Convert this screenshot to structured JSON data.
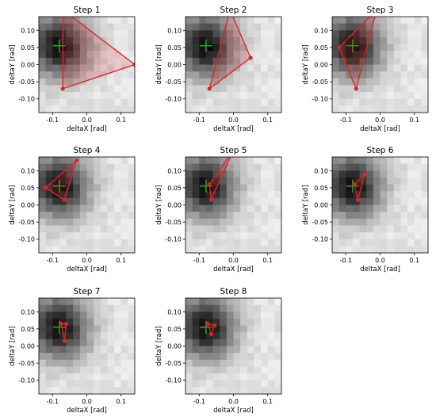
{
  "chart_data": {
    "type": "heatmap",
    "xlabel": "deltaX [rad]",
    "ylabel": "deltaY [rad]",
    "xlim": [
      -0.14,
      0.14
    ],
    "ylim": [
      -0.14,
      0.14
    ],
    "x_ticks": [
      "-0.1",
      "0.0",
      "0.1"
    ],
    "x_tick_values": [
      -0.1,
      0.0,
      0.1
    ],
    "y_ticks": [
      "0.10",
      "0.05",
      "0.00",
      "-0.05",
      "-0.10"
    ],
    "y_tick_values": [
      0.1,
      0.05,
      0.0,
      -0.05,
      -0.1
    ],
    "grid": false,
    "colormap": "gray",
    "target_marker": {
      "symbol": "plus",
      "color": "#2ca02c",
      "x": -0.08,
      "y": 0.055
    },
    "simplex_color": "#d62728",
    "panels": [
      {
        "title": "Step 1",
        "simplex": [
          [
            -0.07,
            0.16
          ],
          [
            0.14,
            0.0
          ],
          [
            -0.07,
            -0.07
          ]
        ]
      },
      {
        "title": "Step 2",
        "simplex": [
          [
            -0.01,
            0.16
          ],
          [
            0.05,
            0.02
          ],
          [
            -0.07,
            -0.07
          ]
        ]
      },
      {
        "title": "Step 3",
        "simplex": [
          [
            -0.01,
            0.16
          ],
          [
            -0.12,
            0.05
          ],
          [
            -0.07,
            -0.07
          ]
        ]
      },
      {
        "title": "Step 4",
        "simplex": [
          [
            -0.03,
            0.13
          ],
          [
            -0.12,
            0.05
          ],
          [
            -0.065,
            0.015
          ]
        ]
      },
      {
        "title": "Step 5",
        "simplex": [
          [
            0.0,
            0.16
          ],
          [
            -0.07,
            0.06
          ],
          [
            -0.065,
            0.015
          ]
        ]
      },
      {
        "title": "Step 6",
        "simplex": [
          [
            -0.045,
            0.09
          ],
          [
            -0.075,
            0.06
          ],
          [
            -0.065,
            0.015
          ]
        ]
      },
      {
        "title": "Step 7",
        "simplex": [
          [
            -0.06,
            0.065
          ],
          [
            -0.075,
            0.065
          ],
          [
            -0.065,
            0.015
          ]
        ]
      },
      {
        "title": "Step 8",
        "simplex": [
          [
            -0.055,
            0.06
          ],
          [
            -0.075,
            0.065
          ],
          [
            -0.065,
            0.035
          ]
        ]
      }
    ]
  }
}
